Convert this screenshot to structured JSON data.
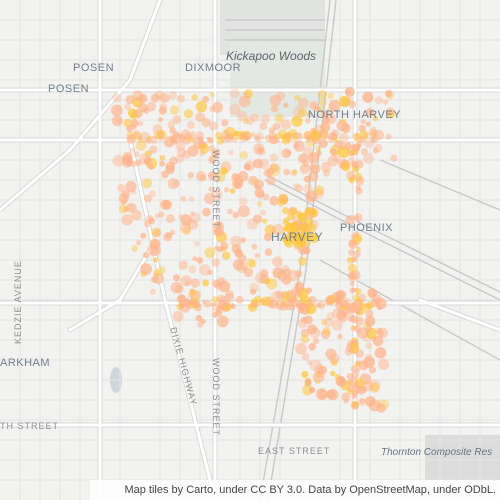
{
  "labels": {
    "posen_1": "POSEN",
    "posen_2": "POSEN",
    "dixmoor": "DIXMOOR",
    "kickapoo_woods": "Kickapoo Woods",
    "north_harvey": "NORTH HARVEY",
    "harvey": "HARVEY",
    "phoenix": "PHOENIX",
    "kedzie_avenue": "KEDZIE AVENUE",
    "markham": "ARKHAM",
    "dixie_highway": "DIXIE HIGHWAY",
    "wood_street_north": "WOOD STREET",
    "wood_street_south": "WOOD STREET",
    "street_147th": "TH STREET",
    "street_147th_east": "EAST STREET",
    "thornton_composite": "Thornton Composite Res"
  },
  "attribution": "Map tiles by Carto, under CC BY 3.0. Data by OpenStreetMap, under ODbL.",
  "colors": {
    "land": "#f2f2f0",
    "road_major": "#ffffff",
    "road_casing": "#d9d9d9",
    "rail": "#c8c8c8",
    "park": "#e2e6e2",
    "water": "#cfd6dc",
    "heat_low": "#ffb38a",
    "heat_high": "#ffc63a"
  }
}
